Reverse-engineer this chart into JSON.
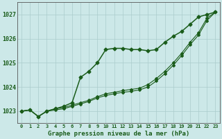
{
  "title": "Graphe pression niveau de la mer (hPa)",
  "background_color": "#cce8e8",
  "grid_color": "#aacccc",
  "line_color": "#1a5c1a",
  "xlim_min": -0.5,
  "xlim_max": 23.5,
  "ylim_min": 1022.5,
  "ylim_max": 1027.5,
  "yticks": [
    1023,
    1024,
    1025,
    1026,
    1027
  ],
  "xticks": [
    0,
    1,
    2,
    3,
    4,
    5,
    6,
    7,
    8,
    9,
    10,
    11,
    12,
    13,
    14,
    15,
    16,
    17,
    18,
    19,
    20,
    21,
    22,
    23
  ],
  "series1_x": [
    0,
    1,
    2,
    3,
    4,
    5,
    6,
    7,
    8,
    9,
    10,
    11,
    12,
    13,
    14,
    15,
    16,
    17,
    18,
    19,
    20,
    21,
    22,
    23
  ],
  "series1_y": [
    1023.0,
    1023.05,
    1022.78,
    1023.0,
    1023.1,
    1023.2,
    1023.35,
    1024.4,
    1024.65,
    1025.0,
    1025.55,
    1025.6,
    1025.6,
    1025.55,
    1025.55,
    1025.5,
    1025.55,
    1025.85,
    1026.1,
    1026.3,
    1026.6,
    1026.9,
    1027.0,
    1027.1
  ],
  "series2_x": [
    0,
    1,
    2,
    3,
    4,
    5,
    6,
    7,
    8,
    9,
    10,
    11,
    12,
    13,
    14,
    15,
    16,
    17,
    18,
    19,
    20,
    21,
    22,
    23
  ],
  "series2_y": [
    1023.0,
    1023.05,
    1022.78,
    1023.0,
    1023.1,
    1023.15,
    1023.25,
    1023.35,
    1023.45,
    1023.6,
    1023.72,
    1023.78,
    1023.85,
    1023.9,
    1023.95,
    1024.1,
    1024.35,
    1024.65,
    1025.0,
    1025.4,
    1025.85,
    1026.25,
    1026.85,
    1027.1
  ],
  "series3_x": [
    0,
    1,
    2,
    3,
    4,
    5,
    6,
    7,
    8,
    9,
    10,
    11,
    12,
    13,
    14,
    15,
    16,
    17,
    18,
    19,
    20,
    21,
    22,
    23
  ],
  "series3_y": [
    1023.0,
    1023.05,
    1022.78,
    1023.0,
    1023.05,
    1023.1,
    1023.2,
    1023.3,
    1023.4,
    1023.55,
    1023.65,
    1023.72,
    1023.78,
    1023.82,
    1023.88,
    1024.0,
    1024.25,
    1024.55,
    1024.9,
    1025.3,
    1025.75,
    1026.15,
    1026.75,
    1027.1
  ],
  "ytick_fontsize": 6,
  "xtick_fontsize": 5,
  "xlabel_fontsize": 6.5
}
